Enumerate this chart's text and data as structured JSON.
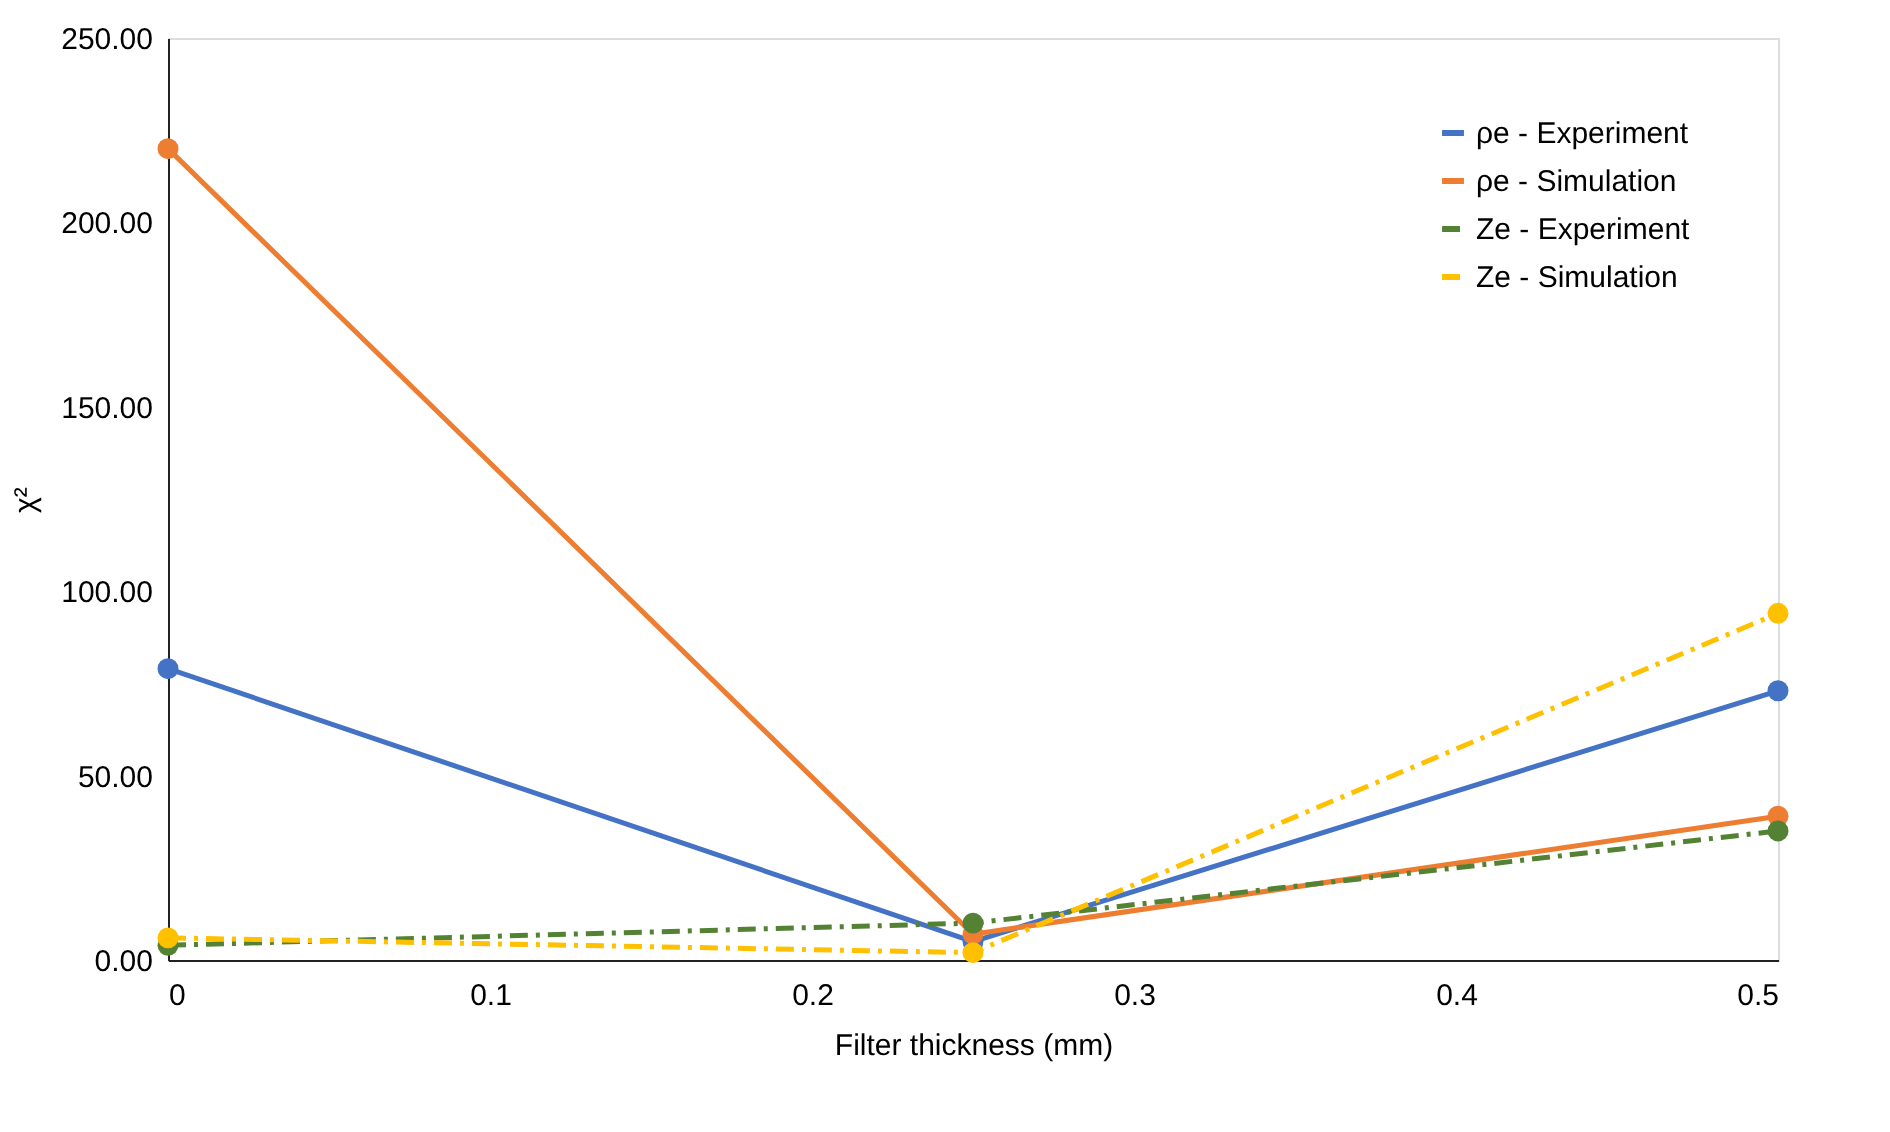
{
  "chart_data": {
    "type": "line",
    "xlabel": "Filter thickness (mm)",
    "ylabel": "χ²",
    "x": [
      0,
      0.25,
      0.5
    ],
    "series": [
      {
        "name": "ρe - Experiment",
        "color": "#4472c4",
        "values": [
          79,
          5,
          73
        ],
        "line_style": "solid"
      },
      {
        "name": "ρe - Simulation",
        "color": "#ed7d31",
        "values": [
          220,
          7,
          39
        ],
        "line_style": "solid"
      },
      {
        "name": "Ze  - Experiment",
        "color": "#548235",
        "values": [
          4,
          10,
          35
        ],
        "line_style": "dashed"
      },
      {
        "name": "Ze - Simulation",
        "color": "#ffc000",
        "values": [
          6,
          2,
          94
        ],
        "line_style": "dashed"
      }
    ],
    "xlim": [
      0,
      0.5
    ],
    "xticks": [
      0,
      0.1,
      0.2,
      0.3,
      0.4,
      0.5
    ],
    "ylim": [
      0,
      250
    ],
    "yticks": [
      {
        "value": 0,
        "label": "0.00"
      },
      {
        "value": 50,
        "label": "50.00"
      },
      {
        "value": 100,
        "label": "100.00"
      },
      {
        "value": 150,
        "label": "150.00"
      },
      {
        "value": 200,
        "label": "200.00"
      },
      {
        "value": 250,
        "label": "250.00"
      }
    ],
    "grid": false,
    "legend": "top right",
    "marker": "circle"
  }
}
